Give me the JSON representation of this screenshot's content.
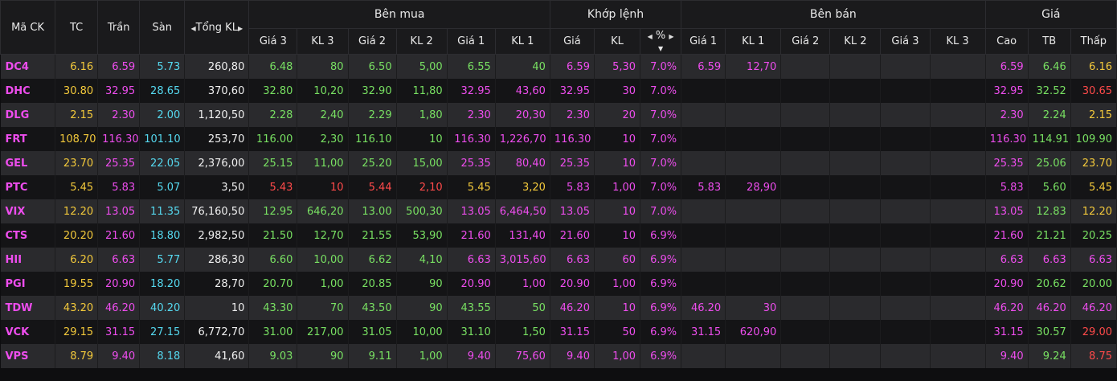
{
  "colors": {
    "magenta": "#ee4dee",
    "yellow": "#f3c93b",
    "cyan": "#55d8ef",
    "green": "#78e062",
    "white": "#f0f0f0",
    "red": "#ff4a4a"
  },
  "header": {
    "symbol": "Mã CK",
    "tc": "TC",
    "ceiling": "Trần",
    "floor": "Sàn",
    "total_volume": "Tổng KL",
    "buy_group": "Bên mua",
    "match_group": "Khớp lệnh",
    "sell_group": "Bên bán",
    "price_group": "Giá",
    "buy_cols": [
      "Giá 3",
      "KL 3",
      "Giá 2",
      "KL 2",
      "Giá 1",
      "KL 1"
    ],
    "match_cols": [
      "Giá",
      "KL",
      "%"
    ],
    "sell_cols": [
      "Giá 1",
      "KL 1",
      "Giá 2",
      "KL 2",
      "Giá 3",
      "KL 3"
    ],
    "price_cols": [
      "Cao",
      "TB",
      "Thấp"
    ]
  },
  "rows": [
    {
      "sym": "DC4",
      "tc": "6.16",
      "tran": "6.59",
      "san": "5.73",
      "tkl": "260,80",
      "b3p": "6.48",
      "b3v": "80",
      "b2p": "6.50",
      "b2v": "5,00",
      "b1p": "6.55",
      "b1v": "40",
      "mp": "6.59",
      "mv": "5,30",
      "pct": "7.0%",
      "s1p": "6.59",
      "s1v": "12,70",
      "s2p": "",
      "s2v": "",
      "s3p": "",
      "s3v": "",
      "cao": "6.59",
      "tb": "6.46",
      "thap": "6.16"
    },
    {
      "sym": "DHC",
      "tc": "30.80",
      "tran": "32.95",
      "san": "28.65",
      "tkl": "370,60",
      "b3p": "32.80",
      "b3v": "10,20",
      "b2p": "32.90",
      "b2v": "11,80",
      "b1p": "32.95",
      "b1v": "43,60",
      "mp": "32.95",
      "mv": "30",
      "pct": "7.0%",
      "s1p": "",
      "s1v": "",
      "s2p": "",
      "s2v": "",
      "s3p": "",
      "s3v": "",
      "cao": "32.95",
      "tb": "32.52",
      "thap": "30.65"
    },
    {
      "sym": "DLG",
      "tc": "2.15",
      "tran": "2.30",
      "san": "2.00",
      "tkl": "1,120,50",
      "b3p": "2.28",
      "b3v": "2,40",
      "b2p": "2.29",
      "b2v": "1,80",
      "b1p": "2.30",
      "b1v": "20,30",
      "mp": "2.30",
      "mv": "20",
      "pct": "7.0%",
      "s1p": "",
      "s1v": "",
      "s2p": "",
      "s2v": "",
      "s3p": "",
      "s3v": "",
      "cao": "2.30",
      "tb": "2.24",
      "thap": "2.15"
    },
    {
      "sym": "FRT",
      "tc": "108.70",
      "tran": "116.30",
      "san": "101.10",
      "tkl": "253,70",
      "b3p": "116.00",
      "b3v": "2,30",
      "b2p": "116.10",
      "b2v": "10",
      "b1p": "116.30",
      "b1v": "1,226,70",
      "mp": "116.30",
      "mv": "10",
      "pct": "7.0%",
      "s1p": "",
      "s1v": "",
      "s2p": "",
      "s2v": "",
      "s3p": "",
      "s3v": "",
      "cao": "116.30",
      "tb": "114.91",
      "thap": "109.90"
    },
    {
      "sym": "GEL",
      "tc": "23.70",
      "tran": "25.35",
      "san": "22.05",
      "tkl": "2,376,00",
      "b3p": "25.15",
      "b3v": "11,00",
      "b2p": "25.20",
      "b2v": "15,00",
      "b1p": "25.35",
      "b1v": "80,40",
      "mp": "25.35",
      "mv": "10",
      "pct": "7.0%",
      "s1p": "",
      "s1v": "",
      "s2p": "",
      "s2v": "",
      "s3p": "",
      "s3v": "",
      "cao": "25.35",
      "tb": "25.06",
      "thap": "23.70"
    },
    {
      "sym": "PTC",
      "tc": "5.45",
      "tran": "5.83",
      "san": "5.07",
      "tkl": "3,50",
      "b3p": "5.43",
      "b3v": "10",
      "b2p": "5.44",
      "b2v": "2,10",
      "b1p": "5.45",
      "b1v": "3,20",
      "mp": "5.83",
      "mv": "1,00",
      "pct": "7.0%",
      "s1p": "5.83",
      "s1v": "28,90",
      "s2p": "",
      "s2v": "",
      "s3p": "",
      "s3v": "",
      "cao": "5.83",
      "tb": "5.60",
      "thap": "5.45"
    },
    {
      "sym": "VIX",
      "tc": "12.20",
      "tran": "13.05",
      "san": "11.35",
      "tkl": "76,160,50",
      "b3p": "12.95",
      "b3v": "646,20",
      "b2p": "13.00",
      "b2v": "500,30",
      "b1p": "13.05",
      "b1v": "6,464,50",
      "mp": "13.05",
      "mv": "10",
      "pct": "7.0%",
      "s1p": "",
      "s1v": "",
      "s2p": "",
      "s2v": "",
      "s3p": "",
      "s3v": "",
      "cao": "13.05",
      "tb": "12.83",
      "thap": "12.20"
    },
    {
      "sym": "CTS",
      "tc": "20.20",
      "tran": "21.60",
      "san": "18.80",
      "tkl": "2,982,50",
      "b3p": "21.50",
      "b3v": "12,70",
      "b2p": "21.55",
      "b2v": "53,90",
      "b1p": "21.60",
      "b1v": "131,40",
      "mp": "21.60",
      "mv": "10",
      "pct": "6.9%",
      "s1p": "",
      "s1v": "",
      "s2p": "",
      "s2v": "",
      "s3p": "",
      "s3v": "",
      "cao": "21.60",
      "tb": "21.21",
      "thap": "20.25"
    },
    {
      "sym": "HII",
      "tc": "6.20",
      "tran": "6.63",
      "san": "5.77",
      "tkl": "286,30",
      "b3p": "6.60",
      "b3v": "10,00",
      "b2p": "6.62",
      "b2v": "4,10",
      "b1p": "6.63",
      "b1v": "3,015,60",
      "mp": "6.63",
      "mv": "60",
      "pct": "6.9%",
      "s1p": "",
      "s1v": "",
      "s2p": "",
      "s2v": "",
      "s3p": "",
      "s3v": "",
      "cao": "6.63",
      "tb": "6.63",
      "thap": "6.63"
    },
    {
      "sym": "PGI",
      "tc": "19.55",
      "tran": "20.90",
      "san": "18.20",
      "tkl": "28,70",
      "b3p": "20.70",
      "b3v": "1,00",
      "b2p": "20.85",
      "b2v": "90",
      "b1p": "20.90",
      "b1v": "1,00",
      "mp": "20.90",
      "mv": "1,00",
      "pct": "6.9%",
      "s1p": "",
      "s1v": "",
      "s2p": "",
      "s2v": "",
      "s3p": "",
      "s3v": "",
      "cao": "20.90",
      "tb": "20.62",
      "thap": "20.00"
    },
    {
      "sym": "TDW",
      "tc": "43.20",
      "tran": "46.20",
      "san": "40.20",
      "tkl": "10",
      "b3p": "43.30",
      "b3v": "70",
      "b2p": "43.50",
      "b2v": "90",
      "b1p": "43.55",
      "b1v": "50",
      "mp": "46.20",
      "mv": "10",
      "pct": "6.9%",
      "s1p": "46.20",
      "s1v": "30",
      "s2p": "",
      "s2v": "",
      "s3p": "",
      "s3v": "",
      "cao": "46.20",
      "tb": "46.20",
      "thap": "46.20"
    },
    {
      "sym": "VCK",
      "tc": "29.15",
      "tran": "31.15",
      "san": "27.15",
      "tkl": "6,772,70",
      "b3p": "31.00",
      "b3v": "217,00",
      "b2p": "31.05",
      "b2v": "10,00",
      "b1p": "31.10",
      "b1v": "1,50",
      "mp": "31.15",
      "mv": "50",
      "pct": "6.9%",
      "s1p": "31.15",
      "s1v": "620,90",
      "s2p": "",
      "s2v": "",
      "s3p": "",
      "s3v": "",
      "cao": "31.15",
      "tb": "30.57",
      "thap": "29.00"
    },
    {
      "sym": "VPS",
      "tc": "8.79",
      "tran": "9.40",
      "san": "8.18",
      "tkl": "41,60",
      "b3p": "9.03",
      "b3v": "90",
      "b2p": "9.11",
      "b2v": "1,00",
      "b1p": "9.40",
      "b1v": "75,60",
      "mp": "9.40",
      "mv": "1,00",
      "pct": "6.9%",
      "s1p": "",
      "s1v": "",
      "s2p": "",
      "s2v": "",
      "s3p": "",
      "s3v": "",
      "cao": "9.40",
      "tb": "9.24",
      "thap": "8.75"
    }
  ]
}
